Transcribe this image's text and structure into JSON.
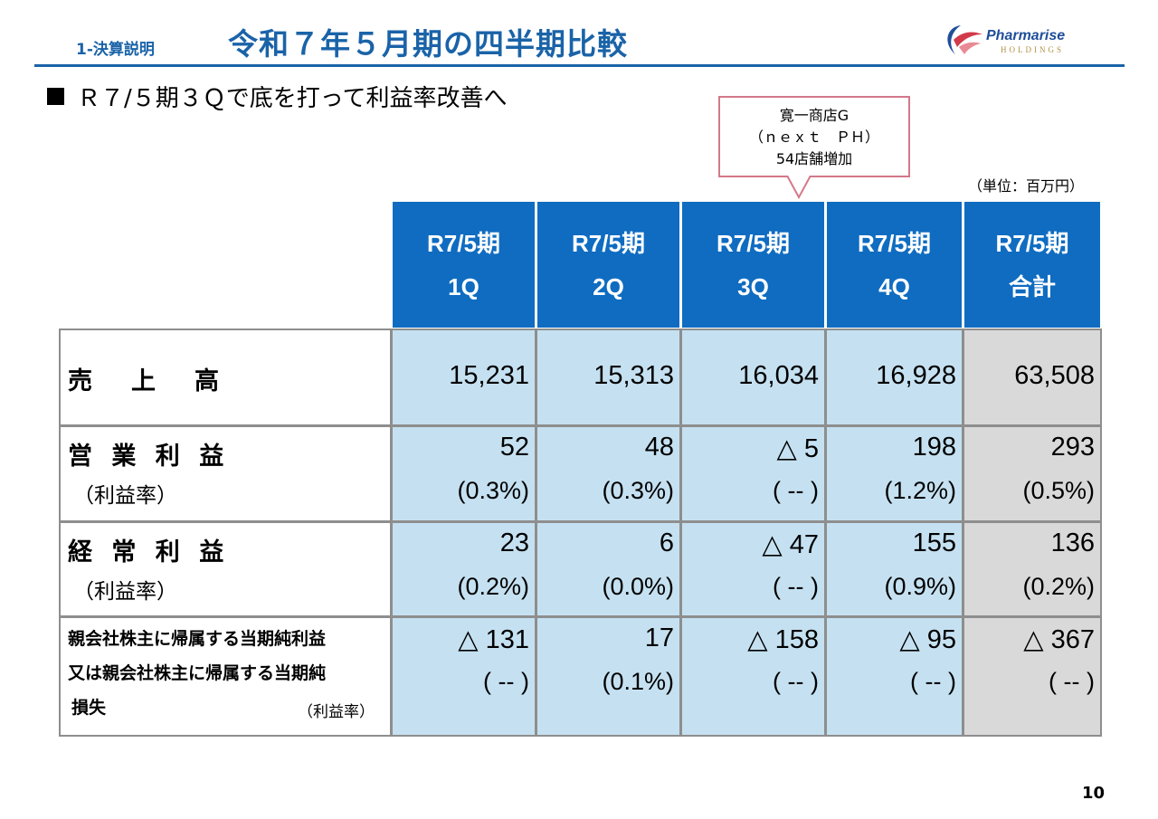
{
  "header": {
    "section_label": "1-決算説明",
    "title": "令和７年５月期の四半期比較",
    "logo": {
      "name": "Pharmarise",
      "sub": "HOLDINGS",
      "colors": {
        "blue": "#1f4e9a",
        "red": "#d23a4a",
        "gold": "#b39043"
      }
    }
  },
  "subtitle": "Ｒ７/５期３Ｑで底を打って利益率改善へ",
  "callout": {
    "line1": "寛一商店G",
    "line2": "（ｎｅｘｔ　ＰＨ）",
    "line3": "54店舗増加"
  },
  "unit": "（単位：百万円）",
  "table": {
    "columns": [
      {
        "line1": "R7/5期",
        "line2": "1Q"
      },
      {
        "line1": "R7/5期",
        "line2": "2Q"
      },
      {
        "line1": "R7/5期",
        "line2": "3Q"
      },
      {
        "line1": "R7/5期",
        "line2": "4Q"
      },
      {
        "line1": "R7/5期",
        "line2": "合計"
      }
    ],
    "rows": {
      "sales": {
        "label": "売　上　高",
        "values": [
          "15,231",
          "15,313",
          "16,034",
          "16,928",
          "63,508"
        ]
      },
      "operating_profit": {
        "label": "営 業 利 益",
        "sub": "（利益率）",
        "values": [
          "52",
          "48",
          "△ 5",
          "198",
          "293"
        ],
        "rates": [
          "(0.3%)",
          "(0.3%)",
          "( -- )",
          "(1.2%)",
          "(0.5%)"
        ]
      },
      "ordinary_profit": {
        "label": "経 常 利 益",
        "sub": "（利益率）",
        "values": [
          "23",
          "6",
          "△ 47",
          "155",
          "136"
        ],
        "rates": [
          "(0.2%)",
          "(0.0%)",
          "( -- )",
          "(0.9%)",
          "(0.2%)"
        ]
      },
      "net_profit": {
        "label_line1": "親会社株主に帰属する当期純利益",
        "label_line2": "又は親会社株主に帰属する当期純",
        "label_line3": "損失",
        "sub": "（利益率）",
        "values": [
          "△ 131",
          "17",
          "△ 158",
          "△ 95",
          "△ 367"
        ],
        "rates": [
          "( -- )",
          "(0.1%)",
          "( -- )",
          "( -- )",
          "( -- )"
        ]
      }
    }
  },
  "page_number": "10",
  "colors": {
    "brand_blue": "#1a63a8",
    "header_fill": "#0f6cc1",
    "value_fill": "#c5e1f1",
    "total_fill": "#d9d9d9",
    "callout_border": "#d4788a"
  }
}
